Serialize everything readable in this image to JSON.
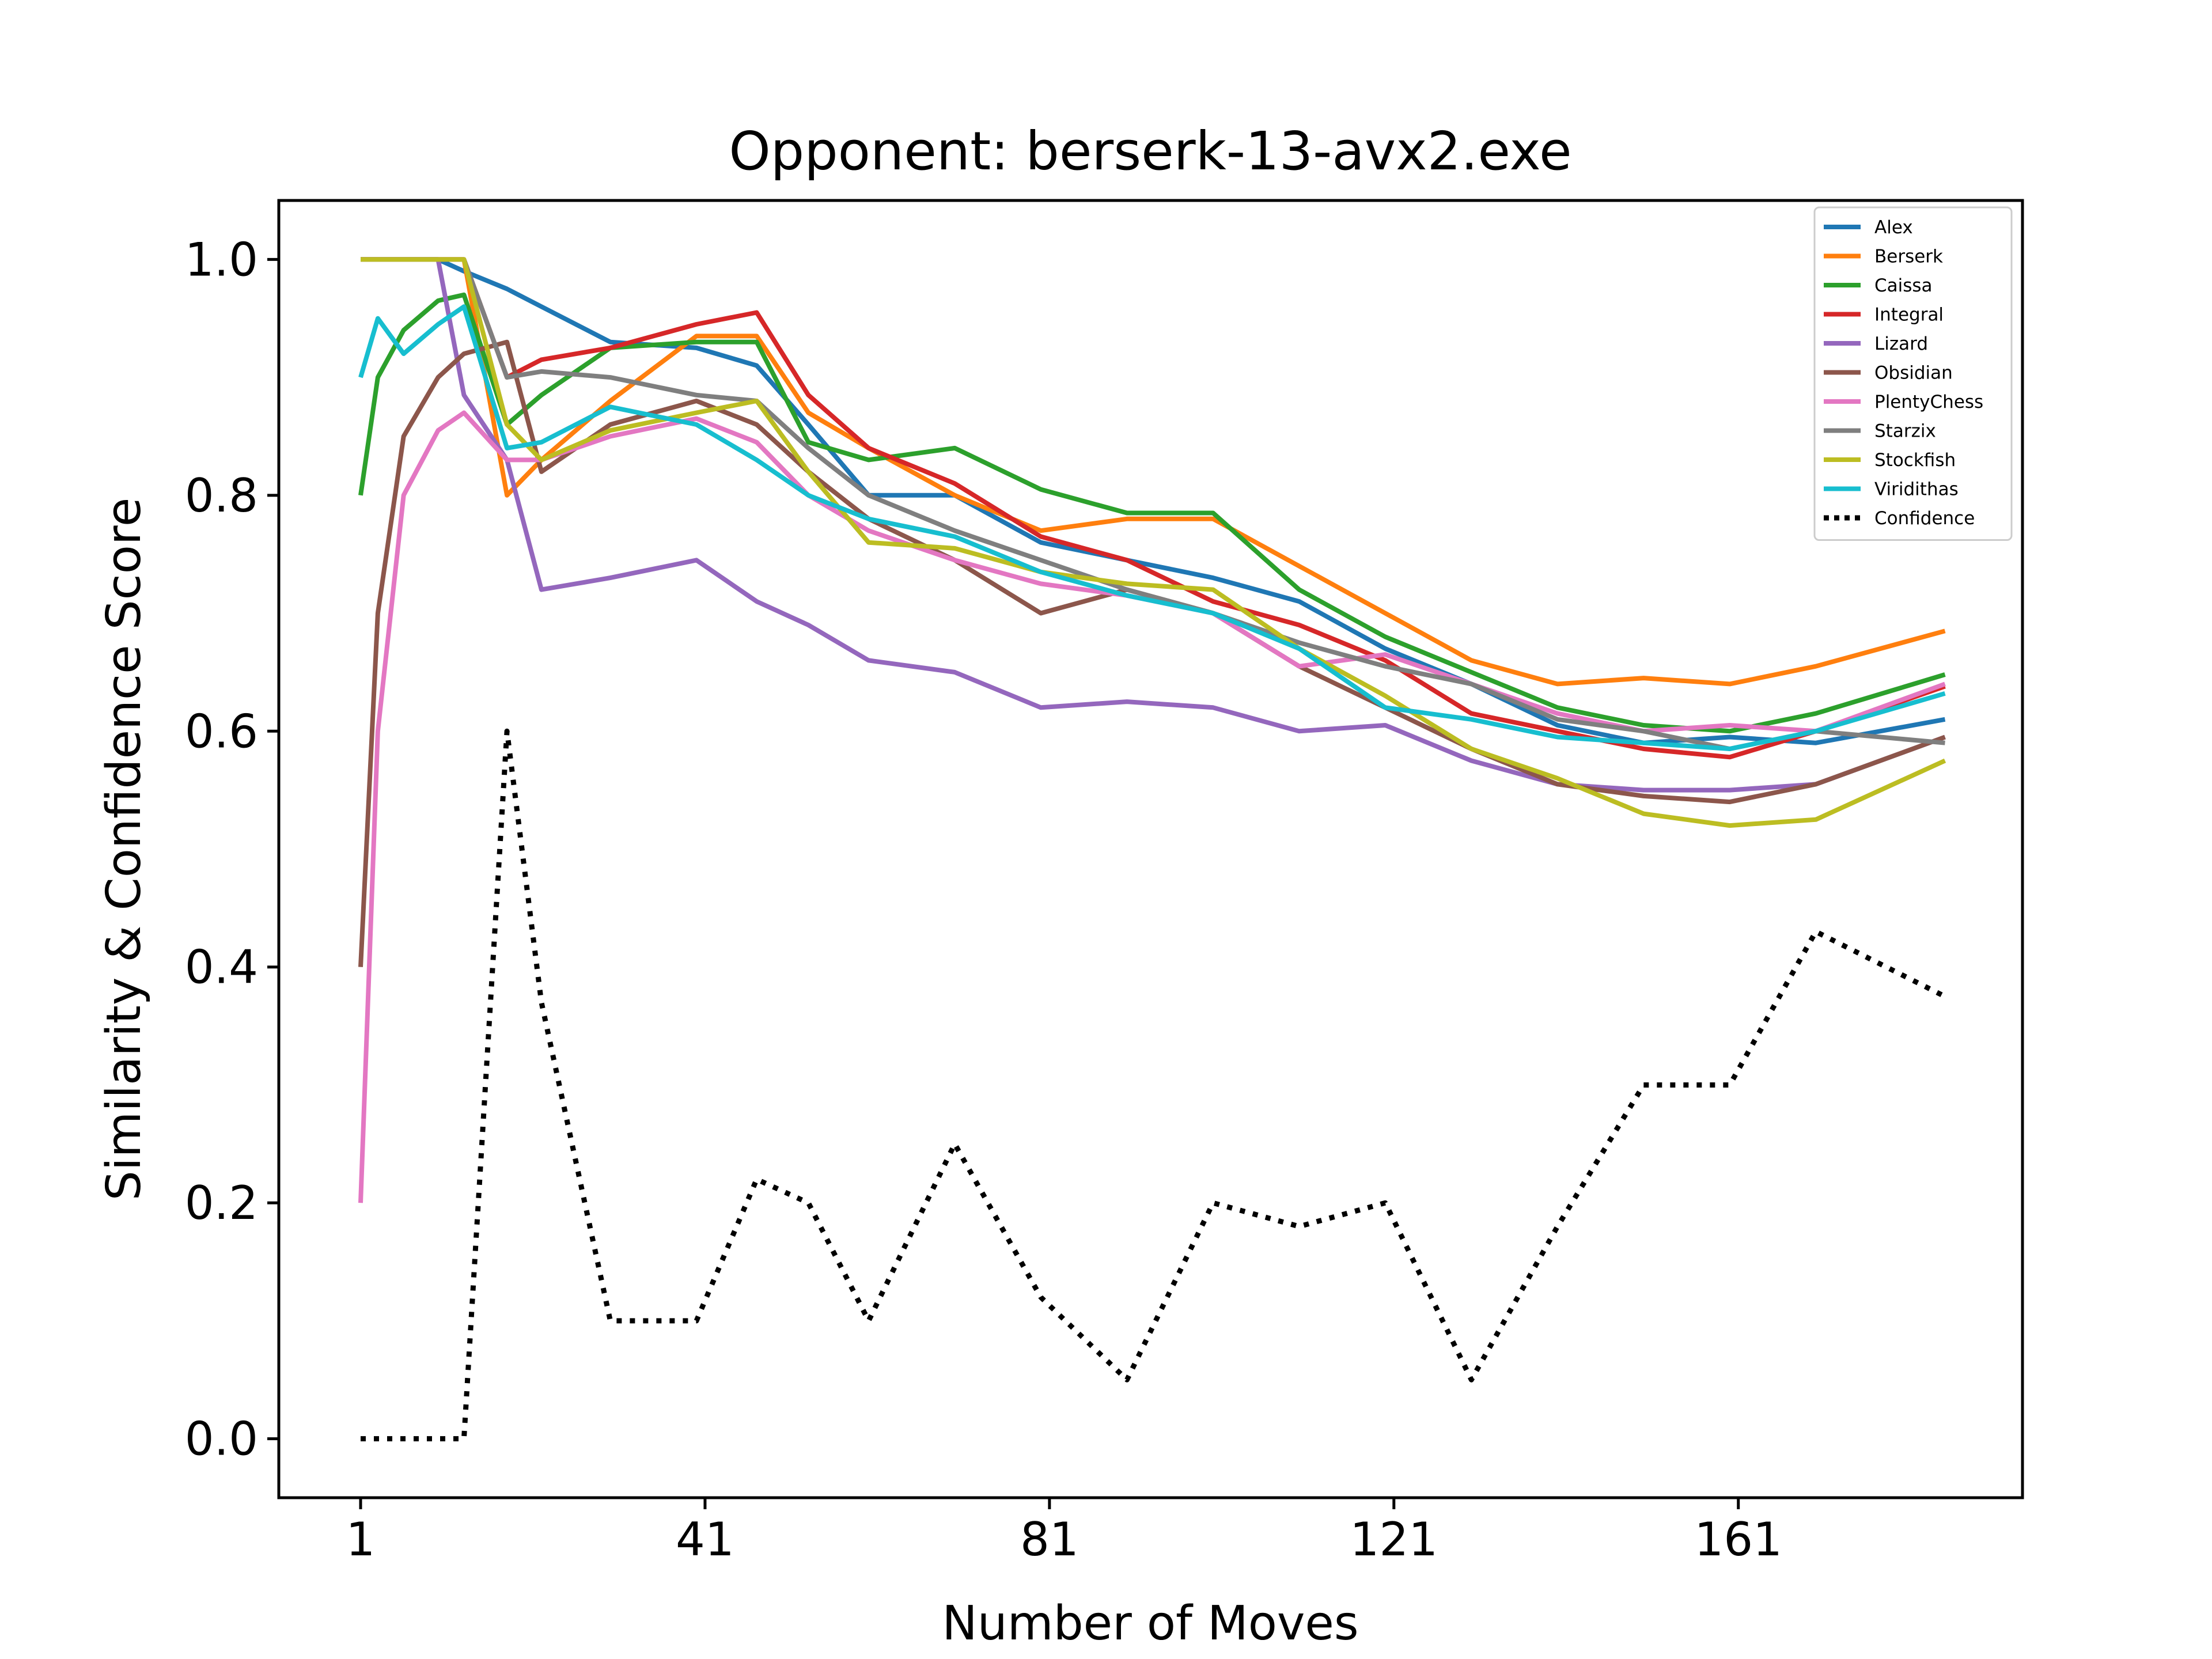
{
  "chart_data": {
    "type": "line",
    "title": "Opponent: berserk-13-avx2.exe",
    "xlabel": "Number of Moves",
    "ylabel": "Similarity & Confidence Score",
    "xlim": [
      -8.5,
      194
    ],
    "ylim": [
      -0.05,
      1.05
    ],
    "xticks": [
      1,
      41,
      81,
      121,
      161
    ],
    "yticks": [
      0.0,
      0.2,
      0.4,
      0.6,
      0.8,
      1.0
    ],
    "grid": false,
    "legend_position": "top-right",
    "x_knots": [
      1,
      3,
      6,
      10,
      13,
      18,
      22,
      30,
      40,
      47,
      53,
      60,
      70,
      80,
      90,
      100,
      110,
      120,
      130,
      140,
      150,
      160,
      170,
      185
    ],
    "series": [
      {
        "name": "Alex",
        "color": "#1f77b4",
        "dash": "solid",
        "values": [
          1.0,
          1.0,
          1.0,
          1.0,
          0.99,
          0.975,
          0.96,
          0.93,
          0.925,
          0.91,
          0.86,
          0.8,
          0.8,
          0.76,
          0.745,
          0.73,
          0.71,
          0.67,
          0.64,
          0.605,
          0.59,
          0.595,
          0.59,
          0.61
        ]
      },
      {
        "name": "Berserk",
        "color": "#ff7f0e",
        "dash": "solid",
        "values": [
          1.0,
          1.0,
          1.0,
          1.0,
          1.0,
          0.8,
          0.83,
          0.88,
          0.935,
          0.935,
          0.87,
          0.84,
          0.8,
          0.77,
          0.78,
          0.78,
          0.74,
          0.7,
          0.66,
          0.64,
          0.645,
          0.64,
          0.655,
          0.685
        ]
      },
      {
        "name": "Caissa",
        "color": "#2ca02c",
        "dash": "solid",
        "values": [
          0.8,
          0.9,
          0.94,
          0.965,
          0.97,
          0.86,
          0.885,
          0.925,
          0.93,
          0.93,
          0.845,
          0.83,
          0.84,
          0.805,
          0.785,
          0.785,
          0.72,
          0.68,
          0.65,
          0.62,
          0.605,
          0.6,
          0.615,
          0.648
        ]
      },
      {
        "name": "Integral",
        "color": "#d62728",
        "dash": "solid",
        "values": [
          1.0,
          1.0,
          1.0,
          1.0,
          1.0,
          0.9,
          0.915,
          0.925,
          0.945,
          0.955,
          0.885,
          0.84,
          0.81,
          0.765,
          0.745,
          0.71,
          0.69,
          0.66,
          0.615,
          0.6,
          0.585,
          0.578,
          0.6,
          0.638
        ]
      },
      {
        "name": "Lizard",
        "color": "#9467bd",
        "dash": "solid",
        "values": [
          1.0,
          1.0,
          1.0,
          1.0,
          0.885,
          0.83,
          0.72,
          0.73,
          0.745,
          0.71,
          0.69,
          0.66,
          0.65,
          0.62,
          0.625,
          0.62,
          0.6,
          0.605,
          0.575,
          0.555,
          0.55,
          0.55,
          0.555,
          0.595
        ]
      },
      {
        "name": "Obsidian",
        "color": "#8c564b",
        "dash": "solid",
        "values": [
          0.4,
          0.7,
          0.85,
          0.9,
          0.92,
          0.93,
          0.82,
          0.86,
          0.88,
          0.86,
          0.82,
          0.78,
          0.745,
          0.7,
          0.72,
          0.7,
          0.655,
          0.62,
          0.585,
          0.555,
          0.545,
          0.54,
          0.555,
          0.595
        ]
      },
      {
        "name": "PlentyChess",
        "color": "#e377c2",
        "dash": "solid",
        "values": [
          0.2,
          0.6,
          0.8,
          0.855,
          0.87,
          0.83,
          0.83,
          0.85,
          0.865,
          0.845,
          0.8,
          0.77,
          0.745,
          0.725,
          0.715,
          0.7,
          0.655,
          0.665,
          0.64,
          0.615,
          0.6,
          0.605,
          0.6,
          0.64
        ]
      },
      {
        "name": "Starzix",
        "color": "#7f7f7f",
        "dash": "solid",
        "values": [
          1.0,
          1.0,
          1.0,
          1.0,
          1.0,
          0.9,
          0.905,
          0.9,
          0.885,
          0.88,
          0.84,
          0.8,
          0.77,
          0.745,
          0.72,
          0.7,
          0.675,
          0.655,
          0.64,
          0.61,
          0.6,
          0.585,
          0.6,
          0.59
        ]
      },
      {
        "name": "Stockfish",
        "color": "#bcbd22",
        "dash": "solid",
        "values": [
          1.0,
          1.0,
          1.0,
          1.0,
          1.0,
          0.86,
          0.83,
          0.855,
          0.87,
          0.88,
          0.82,
          0.76,
          0.755,
          0.735,
          0.725,
          0.72,
          0.67,
          0.63,
          0.585,
          0.56,
          0.53,
          0.52,
          0.525,
          0.575
        ]
      },
      {
        "name": "Viridithas",
        "color": "#17becf",
        "dash": "solid",
        "values": [
          0.9,
          0.95,
          0.92,
          0.945,
          0.96,
          0.84,
          0.845,
          0.875,
          0.86,
          0.83,
          0.8,
          0.78,
          0.765,
          0.735,
          0.715,
          0.7,
          0.67,
          0.62,
          0.61,
          0.595,
          0.59,
          0.585,
          0.6,
          0.632
        ]
      },
      {
        "name": "Confidence",
        "color": "#000000",
        "dash": "dotted",
        "values": [
          0.0,
          0.0,
          0.0,
          0.0,
          0.0,
          0.6,
          0.37,
          0.1,
          0.1,
          0.22,
          0.2,
          0.1,
          0.25,
          0.12,
          0.05,
          0.2,
          0.18,
          0.2,
          0.05,
          0.18,
          0.3,
          0.3,
          0.43,
          0.375
        ]
      }
    ]
  }
}
